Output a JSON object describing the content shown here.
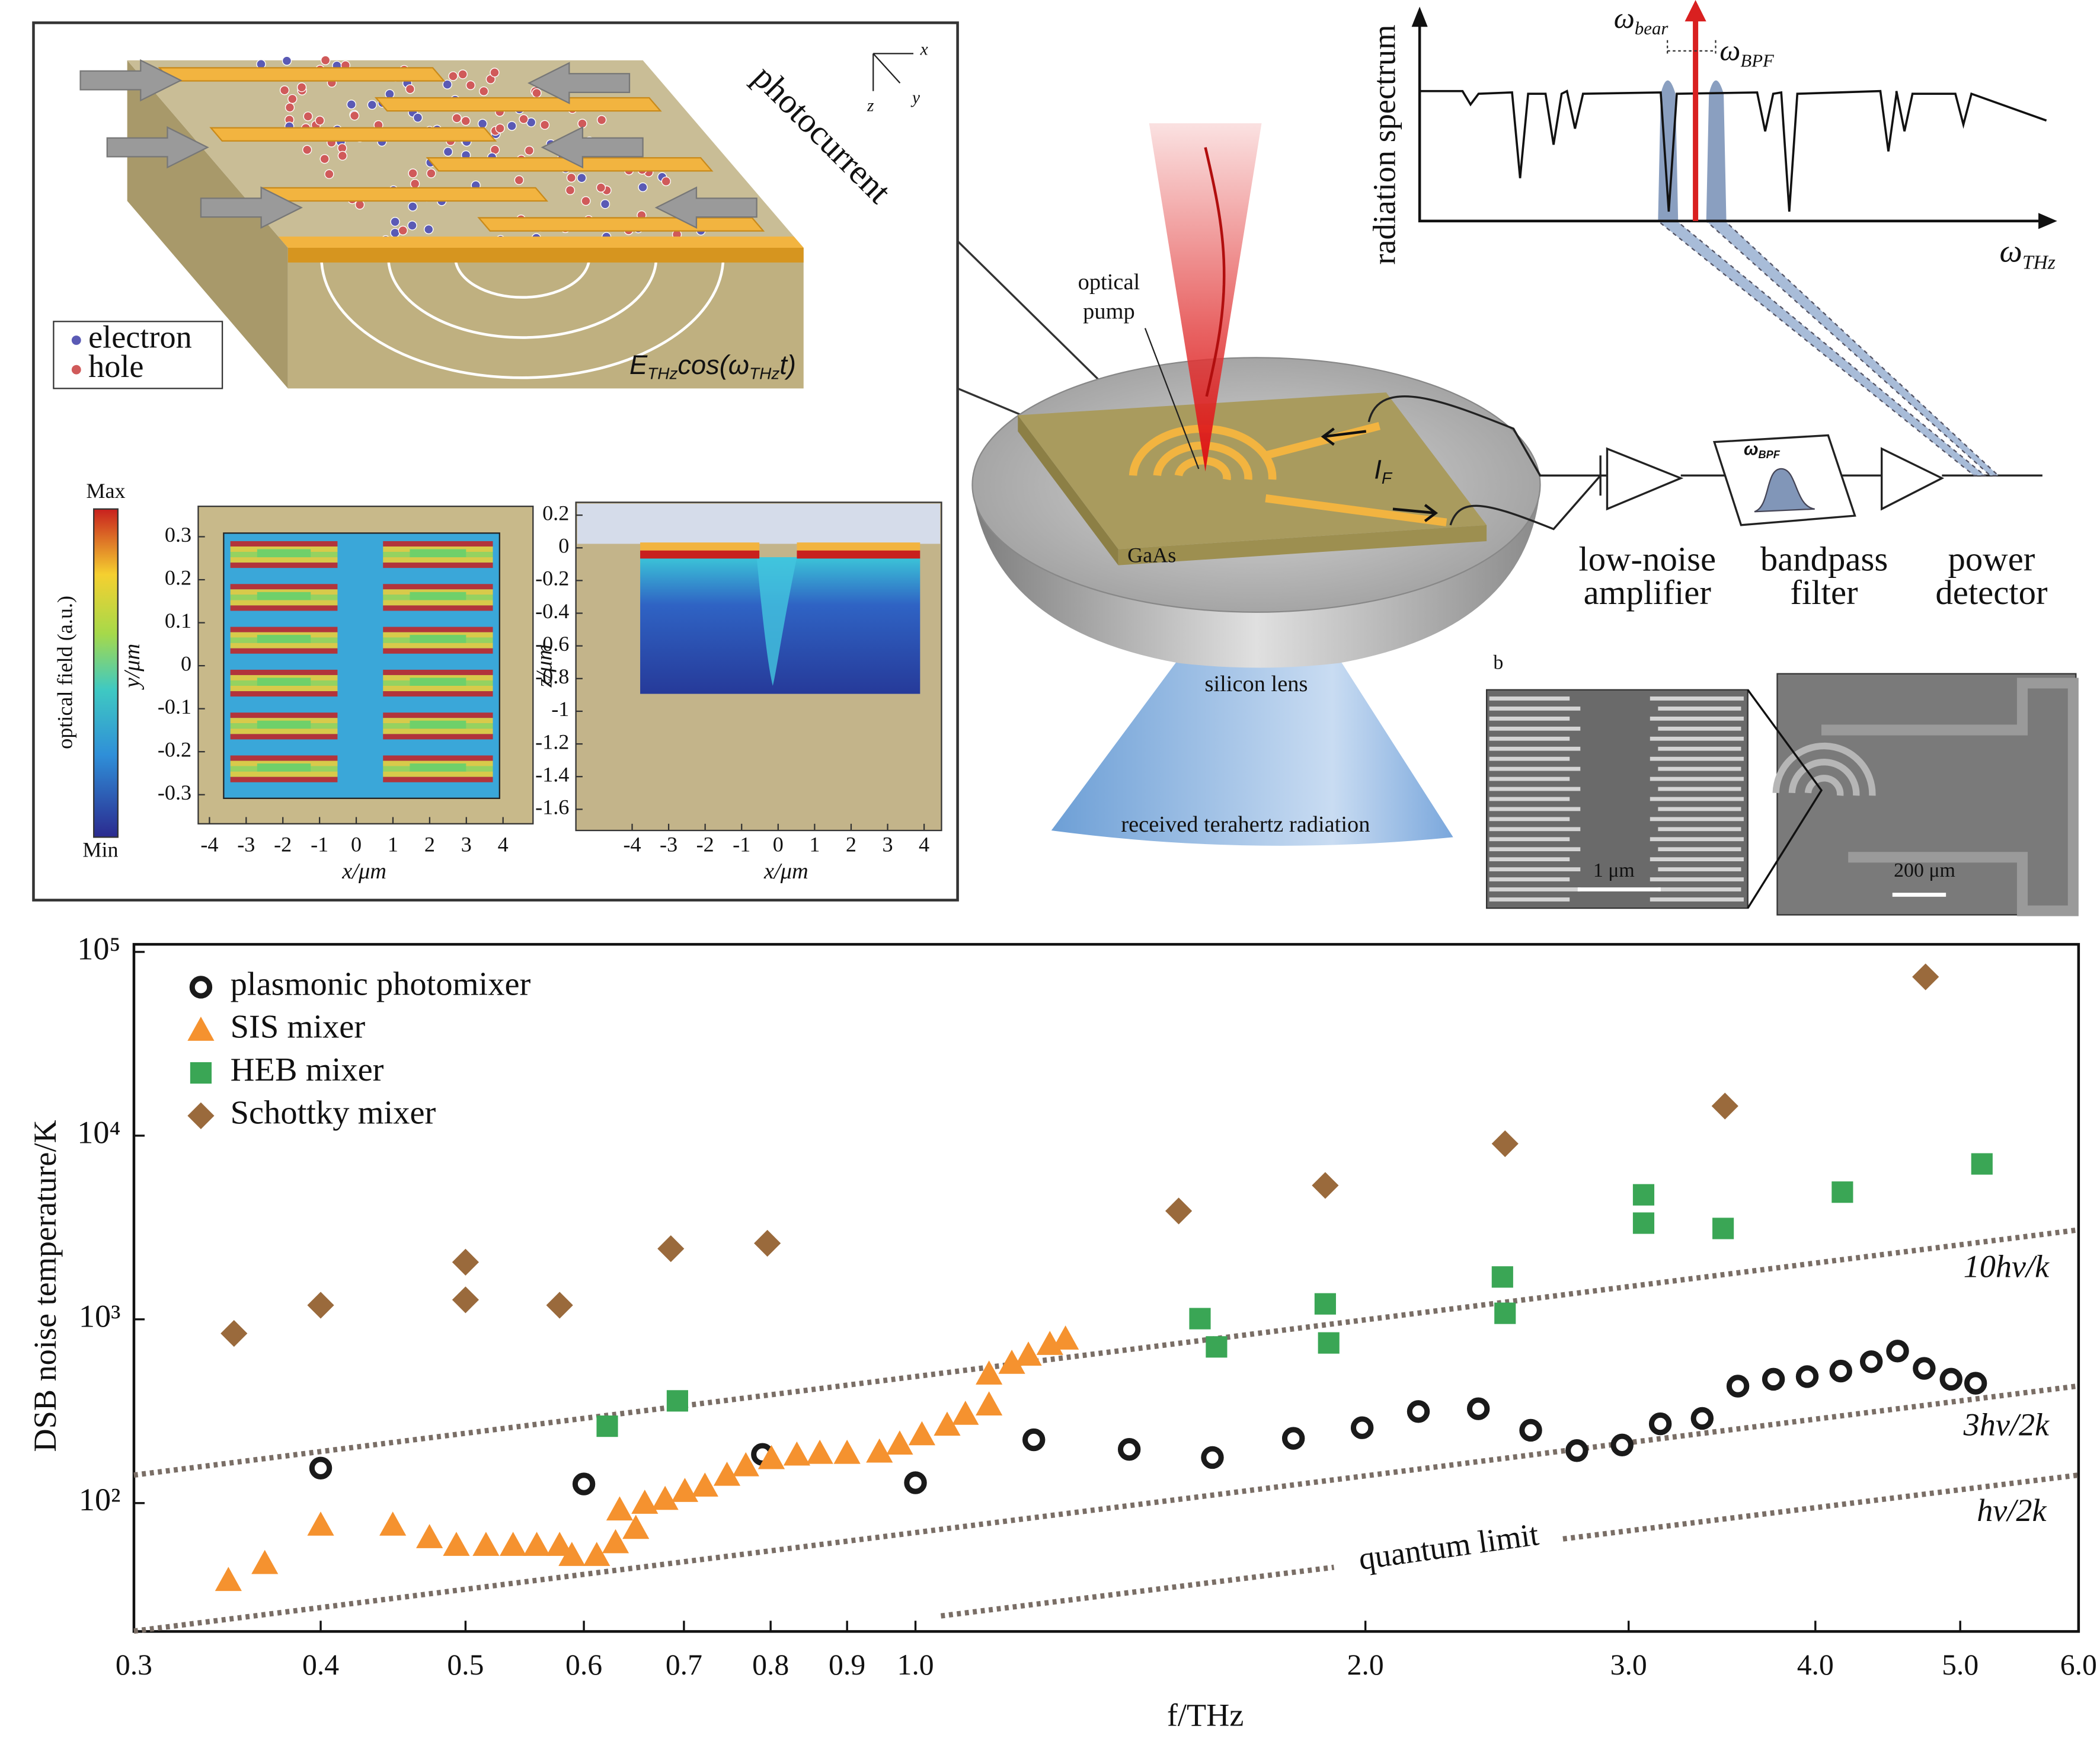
{
  "figure": {
    "photomixer": {
      "label": "photocurrent",
      "axis_labels": [
        "x",
        "z",
        "y"
      ],
      "legend": [
        "electron",
        "hole"
      ],
      "field": [
        "E",
        "THz",
        "cos(ω",
        "THz",
        "t)"
      ]
    },
    "colorbar": {
      "max": "Max",
      "min": "Min",
      "label": "optical field (a.u.)"
    },
    "field_xy": {
      "xlabel": "x/μm",
      "ylabel": "y/μm",
      "xticks": [
        -4,
        -3,
        -2,
        -1,
        0,
        1,
        2,
        3,
        4
      ],
      "yticks": [
        0.3,
        0.2,
        0.1,
        0,
        -0.1,
        -0.2,
        -0.3
      ]
    },
    "field_xz": {
      "xlabel": "x/μm",
      "ylabel": "z/μm",
      "xticks": [
        -4,
        -3,
        -2,
        -1,
        0,
        1,
        2,
        3,
        4
      ],
      "yticks": [
        0.2,
        0,
        -0.2,
        -0.4,
        -0.6,
        -0.8,
        -1.0,
        -1.2,
        -1.4,
        -1.6
      ]
    },
    "setup": {
      "pump": [
        "optical",
        "pump"
      ],
      "chip": "GaAs",
      "current": [
        "I",
        "F"
      ],
      "lens": "silicon lens",
      "radiation": "received terahertz radiation",
      "components": [
        [
          "low-noise",
          "amplifier"
        ],
        [
          "bandpass",
          "filter"
        ],
        [
          "power",
          "detector"
        ]
      ],
      "filter_symbol": [
        "ω",
        "BPF"
      ]
    },
    "spectrum": {
      "ylabel": "radiation spectrum",
      "xlabel": [
        "ω",
        "THz"
      ],
      "beat": [
        "ω",
        "bear"
      ],
      "bpf": [
        "ω",
        "BPF"
      ]
    },
    "sem": {
      "panel": "b",
      "scales": [
        "1 μm",
        "200 μm"
      ]
    }
  },
  "chart_data": {
    "type": "scatter",
    "xlabel": "f/THz",
    "ylabel": "DSB noise temperature/K",
    "xscale": "log",
    "yscale": "log",
    "xlim": [
      0.3,
      6.0
    ],
    "ylim": [
      20,
      110000
    ],
    "xticks": [
      0.3,
      0.4,
      0.5,
      0.6,
      0.7,
      0.8,
      0.9,
      {
        "value": 1,
        "label": "1.0"
      },
      {
        "value": 2,
        "label": "2.0"
      },
      {
        "value": 3,
        "label": "3.0"
      },
      {
        "value": 4,
        "label": "4.0"
      },
      {
        "value": 5,
        "label": "5.0"
      },
      {
        "value": 6,
        "label": "6.0"
      }
    ],
    "yticks": [
      {
        "value": 100,
        "label": "10²"
      },
      {
        "value": 1000,
        "label": "10³"
      },
      {
        "value": 10000,
        "label": "10⁴"
      },
      {
        "value": 100000,
        "label": "10⁵"
      }
    ],
    "legend": "upper left",
    "series": [
      {
        "name": "plasmonic photomixer",
        "color": "#1a1a1a",
        "marker": "circle",
        "x": [
          0.4,
          0.6,
          0.79,
          1.0,
          1.2,
          1.39,
          1.58,
          1.79,
          1.99,
          2.17,
          2.38,
          2.58,
          2.77,
          2.97,
          3.15,
          3.36,
          3.55,
          3.75,
          3.95,
          4.16,
          4.36,
          4.54,
          4.73,
          4.93,
          5.12
        ],
        "values": [
          155,
          127,
          184,
          129,
          221,
          196,
          177,
          225,
          257,
          315,
          326,
          249,
          193,
          207,
          270,
          289,
          433,
          472,
          488,
          523,
          588,
          672,
          541,
          472,
          449
        ]
      },
      {
        "name": "SIS mixer",
        "color": "#f5922f",
        "marker": "triangle",
        "x": [
          0.347,
          0.367,
          0.4,
          0.447,
          0.473,
          0.493,
          0.516,
          0.538,
          0.558,
          0.578,
          0.589,
          0.612,
          0.63,
          0.634,
          0.65,
          0.659,
          0.68,
          0.701,
          0.723,
          0.748,
          0.77,
          0.801,
          0.833,
          0.863,
          0.9,
          0.946,
          0.976,
          1.01,
          1.05,
          1.08,
          1.12,
          1.12,
          1.16,
          1.19,
          1.23,
          1.26
        ],
        "values": [
          38,
          47,
          76,
          76,
          65,
          59,
          59,
          59,
          59,
          59,
          52,
          52,
          61,
          92,
          73,
          100,
          105,
          116,
          124,
          142,
          160,
          175,
          183,
          187,
          187,
          190,
          210,
          236,
          266,
          305,
          343,
          505,
          578,
          640,
          732,
          783
        ]
      },
      {
        "name": "HEB mixer",
        "color": "#3aa655",
        "marker": "square",
        "x": [
          0.622,
          0.693,
          1.55,
          1.59,
          1.88,
          1.89,
          2.47,
          2.48,
          3.07,
          3.07,
          3.47,
          4.17,
          5.17
        ],
        "values": [
          262,
          360,
          1009,
          708,
          1214,
          744,
          1701,
          1079,
          4763,
          3340,
          3124,
          4926,
          7015
        ]
      },
      {
        "name": "Schottky mixer",
        "color": "#9a6a3c",
        "marker": "diamond",
        "x": [
          0.35,
          0.4,
          0.5,
          0.5,
          0.578,
          0.686,
          0.796,
          1.5,
          1.88,
          2.48,
          3.48,
          4.74
        ],
        "values": [
          838,
          1194,
          2048,
          1277,
          1194,
          2424,
          2594,
          3890,
          5357,
          9036,
          14490,
          73150
        ]
      }
    ],
    "reference_lines": [
      {
        "label": "10hv/k",
        "x": [
          0.3,
          6.0
        ],
        "values": [
          142,
          3070
        ]
      },
      {
        "label": "3hv/2k",
        "x": [
          0.3,
          6.0
        ],
        "values": [
          20.1,
          434
        ]
      },
      {
        "label": "hv/2k",
        "x": [
          1.04,
          6.0
        ],
        "values": [
          24.3,
          142
        ]
      }
    ],
    "annotation": "quantum limit"
  }
}
